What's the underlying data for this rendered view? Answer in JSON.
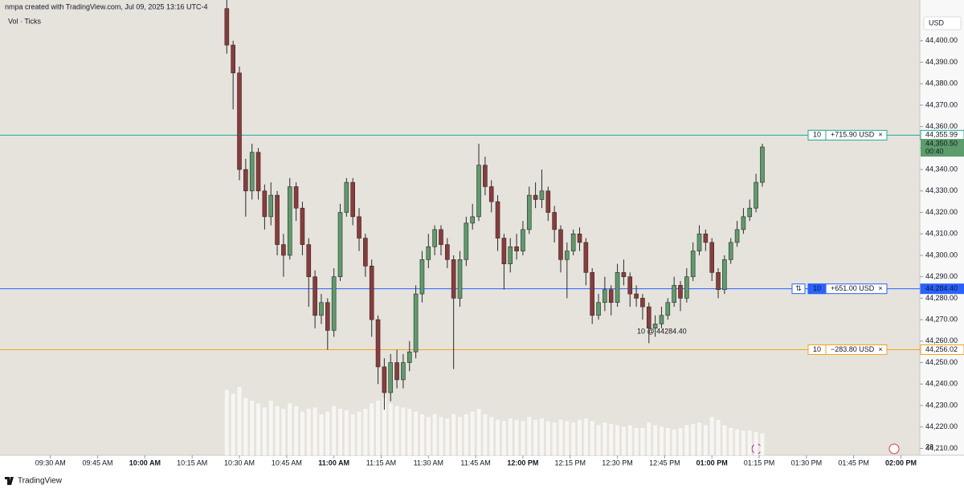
{
  "header": "nmpa created with TradingView.com, Jul 09, 2025 13:16 UTC-4",
  "indicator": "Vol · Ticks",
  "currency": "USD",
  "brand": "TradingView",
  "annotation": "10 @ 44284.40",
  "corner_number": 28,
  "chart_data": {
    "type": "candlestick",
    "up_color": "#5d9c6c",
    "down_color": "#8e3a3a",
    "volume_color": "#f7f6f3",
    "grid": false,
    "x": [
      "10:26 AM",
      "10:28 AM",
      "10:30 AM",
      "10:32 AM",
      "10:34 AM",
      "10:36 AM",
      "10:38 AM",
      "10:40 AM",
      "10:42 AM",
      "10:44 AM",
      "10:46 AM",
      "10:48 AM",
      "10:50 AM",
      "10:52 AM",
      "10:54 AM",
      "10:56 AM",
      "10:58 AM",
      "11:00 AM",
      "11:02 AM",
      "11:04 AM",
      "11:06 AM",
      "11:08 AM",
      "11:10 AM",
      "11:12 AM",
      "11:14 AM",
      "11:16 AM",
      "11:18 AM",
      "11:20 AM",
      "11:22 AM",
      "11:24 AM",
      "11:26 AM",
      "11:28 AM",
      "11:30 AM",
      "11:32 AM",
      "11:34 AM",
      "11:36 AM",
      "11:38 AM",
      "11:40 AM",
      "11:42 AM",
      "11:44 AM",
      "11:46 AM",
      "11:48 AM",
      "11:50 AM",
      "11:52 AM",
      "11:54 AM",
      "11:56 AM",
      "11:58 AM",
      "12:00 PM",
      "12:02 PM",
      "12:04 PM",
      "12:06 PM",
      "12:08 PM",
      "12:10 PM",
      "12:12 PM",
      "12:14 PM",
      "12:16 PM",
      "12:18 PM",
      "12:20 PM",
      "12:22 PM",
      "12:24 PM",
      "12:26 PM",
      "12:28 PM",
      "12:30 PM",
      "12:32 PM",
      "12:34 PM",
      "12:36 PM",
      "12:38 PM",
      "12:40 PM",
      "12:42 PM",
      "12:44 PM",
      "12:46 PM",
      "12:48 PM",
      "12:50 PM",
      "12:52 PM",
      "12:54 PM",
      "12:56 PM",
      "12:58 PM",
      "01:00 PM",
      "01:02 PM",
      "01:04 PM",
      "01:06 PM",
      "01:08 PM",
      "01:10 PM",
      "01:12 PM",
      "01:14 PM",
      "01:16 PM"
    ],
    "open": [
      44415,
      44398,
      44385,
      44340,
      44330,
      44348,
      44330,
      44318,
      44328,
      44305,
      44300,
      44332,
      44322,
      44305,
      44290,
      44272,
      44278,
      44265,
      44290,
      44320,
      44334,
      44318,
      44308,
      44295,
      44270,
      44248,
      44236,
      44250,
      44242,
      44250,
      44255,
      44282,
      44298,
      44304,
      44312,
      44305,
      44298,
      44280,
      44298,
      44315,
      44318,
      44342,
      44332,
      44325,
      44308,
      44296,
      44304,
      44302,
      44312,
      44328,
      44326,
      44330,
      44320,
      44312,
      44298,
      44302,
      44310,
      44306,
      44292,
      44272,
      44278,
      44284,
      44278,
      44292,
      44290,
      44282,
      44280,
      44276,
      44266,
      44268,
      44272,
      44278,
      44286,
      44280,
      44290,
      44302,
      44310,
      44306,
      44292,
      44284,
      44298,
      44306,
      44312,
      44318,
      44322,
      44334
    ],
    "high": [
      44420,
      44400,
      44388,
      44345,
      44352,
      44350,
      44333,
      44334,
      44330,
      44310,
      44336,
      44334,
      44325,
      44308,
      44293,
      44282,
      44280,
      44294,
      44324,
      44336,
      44336,
      44322,
      44310,
      44298,
      44272,
      44252,
      44254,
      44256,
      44254,
      44260,
      44286,
      44302,
      44310,
      44314,
      44314,
      44308,
      44300,
      44302,
      44318,
      44324,
      44352,
      44346,
      44335,
      44328,
      44310,
      44308,
      44310,
      44316,
      44332,
      44334,
      44340,
      44332,
      44323,
      44314,
      44306,
      44312,
      44313,
      44308,
      44294,
      44282,
      44290,
      44286,
      44296,
      44298,
      44292,
      44286,
      44282,
      44278,
      44272,
      44276,
      44280,
      44290,
      44288,
      44294,
      44306,
      44314,
      44312,
      44308,
      44294,
      44300,
      44308,
      44316,
      44322,
      44326,
      44338,
      44352
    ],
    "low": [
      44394,
      44368,
      44335,
      44318,
      44326,
      44326,
      44312,
      44314,
      44300,
      44290,
      44298,
      44316,
      44300,
      44276,
      44266,
      44268,
      44256,
      44262,
      44288,
      44318,
      44314,
      44302,
      44290,
      44262,
      44240,
      44228,
      44232,
      44238,
      44238,
      44246,
      44252,
      44278,
      44294,
      44300,
      44300,
      44294,
      44247,
      44276,
      44295,
      44312,
      44316,
      44328,
      44320,
      44302,
      44284,
      44292,
      44298,
      44300,
      44310,
      44322,
      44322,
      44316,
      44306,
      44292,
      44280,
      44300,
      44302,
      44286,
      44268,
      44270,
      44274,
      44272,
      44276,
      44286,
      44276,
      44276,
      44270,
      44259,
      44262,
      44266,
      44270,
      44276,
      44274,
      44278,
      44288,
      44300,
      44302,
      44288,
      44280,
      44282,
      44296,
      44304,
      44310,
      44316,
      44320,
      44332
    ],
    "close": [
      44398,
      44385,
      44340,
      44330,
      44348,
      44330,
      44318,
      44328,
      44305,
      44300,
      44332,
      44322,
      44305,
      44290,
      44272,
      44278,
      44265,
      44290,
      44320,
      44334,
      44318,
      44308,
      44295,
      44270,
      44248,
      44236,
      44250,
      44242,
      44250,
      44255,
      44282,
      44298,
      44304,
      44312,
      44305,
      44298,
      44280,
      44298,
      44315,
      44318,
      44342,
      44332,
      44325,
      44308,
      44296,
      44304,
      44302,
      44312,
      44328,
      44326,
      44330,
      44320,
      44312,
      44298,
      44302,
      44310,
      44306,
      44292,
      44272,
      44278,
      44284,
      44278,
      44292,
      44290,
      44282,
      44280,
      44276,
      44266,
      44268,
      44272,
      44278,
      44286,
      44280,
      44290,
      44302,
      44310,
      44306,
      44292,
      44284,
      44298,
      44306,
      44312,
      44318,
      44322,
      44334,
      44350.5
    ],
    "volume": [
      48,
      45,
      50,
      42,
      40,
      38,
      35,
      40,
      36,
      34,
      38,
      36,
      32,
      34,
      35,
      30,
      32,
      36,
      34,
      33,
      30,
      32,
      34,
      38,
      40,
      42,
      38,
      36,
      35,
      34,
      32,
      30,
      28,
      30,
      28,
      27,
      30,
      28,
      30,
      32,
      34,
      30,
      28,
      26,
      25,
      27,
      26,
      25,
      28,
      26,
      27,
      25,
      24,
      26,
      25,
      24,
      26,
      27,
      25,
      22,
      24,
      23,
      22,
      21,
      22,
      20,
      20,
      24,
      22,
      21,
      20,
      19,
      20,
      22,
      23,
      24,
      22,
      28,
      26,
      22,
      20,
      19,
      18,
      18,
      17,
      16
    ],
    "vlim": [
      0,
      100
    ],
    "xlim": [
      "09:14 AM",
      "02:06 PM"
    ],
    "xticks": [
      "09:30 AM",
      "09:45 AM",
      "10:00 AM",
      "10:15 AM",
      "10:30 AM",
      "10:45 AM",
      "11:00 AM",
      "11:15 AM",
      "11:30 AM",
      "11:45 AM",
      "12:00 PM",
      "12:15 PM",
      "12:30 PM",
      "12:45 PM",
      "01:00 PM",
      "01:15 PM",
      "01:30 PM",
      "01:45 PM",
      "02:00 PM"
    ],
    "ylim": [
      44206.8,
      44419
    ],
    "yticks": [
      {
        "value": 44210,
        "label": "44,210.00"
      },
      {
        "value": 44220,
        "label": "44,220.00"
      },
      {
        "value": 44230,
        "label": "44,230.00"
      },
      {
        "value": 44240,
        "label": "44,240.00"
      },
      {
        "value": 44250,
        "label": "44,250.00"
      },
      {
        "value": 44260,
        "label": "44,260.00"
      },
      {
        "value": 44270,
        "label": "44,270.00"
      },
      {
        "value": 44280,
        "label": "44,280.00"
      },
      {
        "value": 44290,
        "label": "44,290.00"
      },
      {
        "value": 44300,
        "label": "44,300.00"
      },
      {
        "value": 44310,
        "label": "44,310.00"
      },
      {
        "value": 44320,
        "label": "44,320.00"
      },
      {
        "value": 44330,
        "label": "44,330.00"
      },
      {
        "value": 44340,
        "label": "44,340.00"
      },
      {
        "value": 44350,
        "label": "44,350.00"
      },
      {
        "value": 44360,
        "label": "44,360.00"
      },
      {
        "value": 44370,
        "label": "44,370.00"
      },
      {
        "value": 44380,
        "label": "44,380.00"
      },
      {
        "value": 44390,
        "label": "44,390.00"
      },
      {
        "value": 44400,
        "label": "44,400.00"
      }
    ],
    "price_lines": [
      {
        "price": {
          "value": 44355.99,
          "label": "44,355.99"
        },
        "qty": 10,
        "pnl": "+715.90 USD",
        "color": "#22ab94",
        "filled": false
      },
      {
        "price": {
          "value": 44284.4,
          "label": "44,284.40"
        },
        "qty": 10,
        "pnl": "+651.00 USD",
        "color": "#2962ff",
        "filled": true
      },
      {
        "price": {
          "value": 44256.02,
          "label": "44,256.02"
        },
        "qty": 10,
        "pnl": "−283.80 USD",
        "color": "#f7a21b",
        "filled": false
      }
    ],
    "last_price": {
      "value": 44350.5,
      "label": "44,350.50"
    },
    "countdown": "00:40"
  }
}
